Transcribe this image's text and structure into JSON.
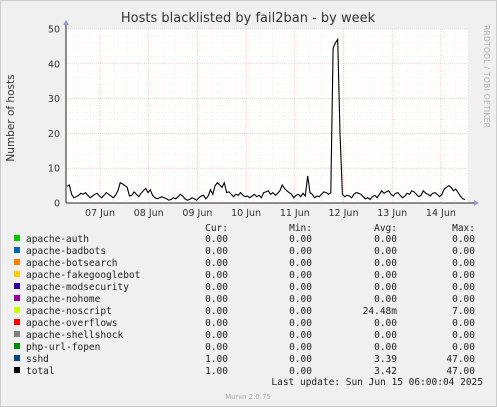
{
  "chart_data": {
    "type": "line",
    "title": "Hosts blacklisted by fail2ban - by week",
    "ylabel": "Number of hosts",
    "watermark": "RRDTOOL / TOBI OETIKER",
    "ylim": [
      0,
      50
    ],
    "yticks": [
      "0",
      "10",
      "20",
      "30",
      "40",
      "50"
    ],
    "xticks": [
      "07 Jun",
      "08 Jun",
      "09 Jun",
      "10 Jun",
      "11 Jun",
      "12 Jun",
      "13 Jun",
      "14 Jun"
    ],
    "series_line": {
      "name": "total",
      "color": "#000000",
      "values": [
        4.8,
        5.2,
        2.5,
        1.5,
        1.8,
        2.2,
        2.8,
        2.5,
        3.0,
        2.2,
        1.5,
        2.0,
        2.5,
        2.8,
        2.0,
        1.5,
        2.2,
        3.0,
        2.5,
        2.0,
        1.5,
        2.2,
        3.5,
        5.8,
        5.5,
        5.0,
        4.5,
        2.0,
        2.2,
        3.2,
        2.5,
        1.8,
        2.8,
        3.5,
        4.2,
        3.0,
        3.8,
        2.2,
        1.5,
        1.2,
        1.5,
        1.8,
        1.5,
        1.2,
        0.8,
        1.0,
        1.5,
        1.2,
        1.8,
        2.5,
        2.0,
        1.2,
        0.8,
        1.0,
        1.5,
        1.2,
        0.8,
        1.5,
        2.0,
        2.2,
        1.2,
        2.0,
        3.8,
        2.5,
        5.0,
        5.8,
        5.2,
        4.5,
        5.8,
        3.0,
        3.2,
        2.5,
        1.8,
        2.5,
        2.2,
        3.0,
        2.2,
        1.8,
        2.0,
        1.5,
        2.0,
        2.5,
        1.8,
        2.2,
        1.5,
        3.0,
        3.2,
        3.5,
        2.5,
        3.0,
        2.2,
        2.8,
        3.5,
        5.2,
        4.2,
        3.5,
        3.0,
        2.5,
        1.5,
        2.2,
        2.5,
        1.8,
        2.8,
        2.0,
        7.8,
        3.0,
        2.5,
        1.5,
        2.0,
        1.8,
        2.5,
        3.2,
        3.0,
        2.5,
        3.0,
        44.5,
        46.0,
        47.0,
        20.0,
        2.5,
        1.8,
        2.2,
        2.0,
        1.5,
        2.5,
        3.0,
        2.8,
        2.5,
        1.8,
        1.2,
        1.5,
        1.0,
        1.8,
        2.2,
        1.5,
        2.5,
        3.5,
        2.8,
        3.2,
        3.5,
        2.5,
        2.0,
        2.8,
        3.0,
        2.2,
        1.5,
        2.0,
        2.8,
        2.5,
        3.5,
        3.2,
        2.5,
        1.8,
        2.2,
        3.5,
        2.8,
        2.5,
        2.0,
        2.8,
        3.0,
        2.5,
        1.8,
        2.5,
        4.0,
        4.5,
        5.0,
        4.5,
        3.5,
        4.0,
        3.0,
        2.0,
        1.2,
        1.0
      ]
    },
    "legend_headers": [
      "Cur:",
      "Min:",
      "Avg:",
      "Max:"
    ],
    "legend": [
      {
        "name": "apache-auth",
        "color": "#00cc00",
        "cur": "0.00",
        "min": "0.00",
        "avg": "0.00",
        "max": "0.00"
      },
      {
        "name": "apache-badbots",
        "color": "#0066b3",
        "cur": "0.00",
        "min": "0.00",
        "avg": "0.00",
        "max": "0.00"
      },
      {
        "name": "apache-botsearch",
        "color": "#ff8000",
        "cur": "0.00",
        "min": "0.00",
        "avg": "0.00",
        "max": "0.00"
      },
      {
        "name": "apache-fakegooglebot",
        "color": "#ffcc00",
        "cur": "0.00",
        "min": "0.00",
        "avg": "0.00",
        "max": "0.00"
      },
      {
        "name": "apache-modsecurity",
        "color": "#330099",
        "cur": "0.00",
        "min": "0.00",
        "avg": "0.00",
        "max": "0.00"
      },
      {
        "name": "apache-nohome",
        "color": "#990099",
        "cur": "0.00",
        "min": "0.00",
        "avg": "0.00",
        "max": "0.00"
      },
      {
        "name": "apache-noscript",
        "color": "#ccff00",
        "cur": "0.00",
        "min": "0.00",
        "avg": "24.48m",
        "max": "7.00"
      },
      {
        "name": "apache-overflows",
        "color": "#ff0000",
        "cur": "0.00",
        "min": "0.00",
        "avg": "0.00",
        "max": "0.00"
      },
      {
        "name": "apache-shellshock",
        "color": "#808080",
        "cur": "0.00",
        "min": "0.00",
        "avg": "0.00",
        "max": "0.00"
      },
      {
        "name": "php-url-fopen",
        "color": "#008f00",
        "cur": "0.00",
        "min": "0.00",
        "avg": "0.00",
        "max": "0.00"
      },
      {
        "name": "sshd",
        "color": "#00487d",
        "cur": "1.00",
        "min": "0.00",
        "avg": "3.39",
        "max": "47.00"
      },
      {
        "name": "total",
        "color": "#000000",
        "cur": "1.00",
        "min": "0.00",
        "avg": "3.42",
        "max": "47.00"
      }
    ],
    "last_update": "Last update: Sun Jun 15 06:00:04 2025",
    "version": "Munin 2.0.75"
  }
}
